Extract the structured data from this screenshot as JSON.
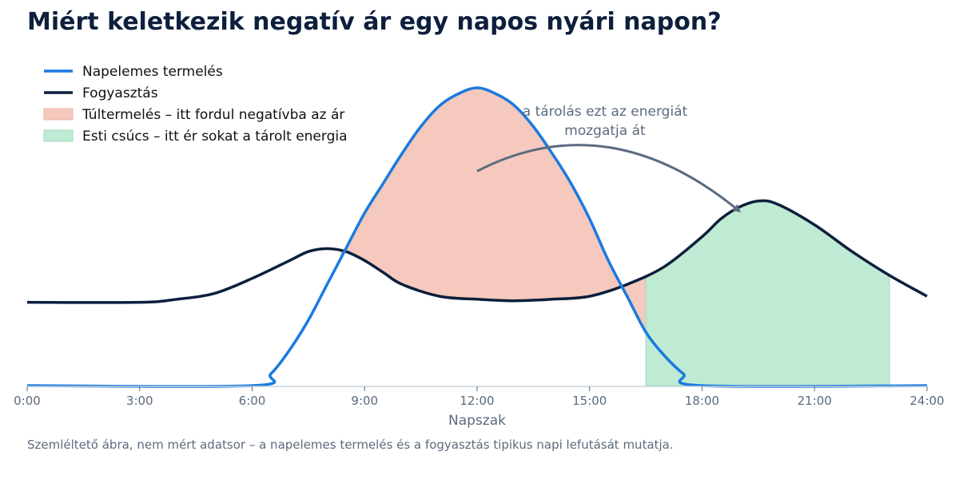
{
  "chart_data": {
    "type": "area",
    "title": "Miért keletkezik negatív ár egy napos nyári napon?",
    "xlabel": "Napszak",
    "ylabel": "",
    "xlim": [
      0,
      24
    ],
    "ylim": [
      0,
      1
    ],
    "x_ticks": [
      {
        "x": 0,
        "label": "0:00"
      },
      {
        "x": 3,
        "label": "3:00"
      },
      {
        "x": 6,
        "label": "6:00"
      },
      {
        "x": 9,
        "label": "9:00"
      },
      {
        "x": 12,
        "label": "12:00"
      },
      {
        "x": 15,
        "label": "15:00"
      },
      {
        "x": 18,
        "label": "18:00"
      },
      {
        "x": 21,
        "label": "21:00"
      },
      {
        "x": 24,
        "label": "24:00"
      }
    ],
    "grid": false,
    "legend_position": "top-left",
    "series": [
      {
        "name": "Napelemes termelés",
        "color": "#1a7ae0",
        "kind": "line",
        "x": [
          0,
          6,
          6.5,
          7,
          7.5,
          8,
          8.5,
          9,
          9.5,
          10,
          10.5,
          11,
          11.5,
          12,
          12.5,
          13,
          13.5,
          14,
          14.5,
          15,
          15.5,
          16,
          16.5,
          17,
          17.5,
          18,
          24
        ],
        "y": [
          0,
          0,
          0.04,
          0.12,
          0.22,
          0.34,
          0.46,
          0.58,
          0.68,
          0.78,
          0.87,
          0.94,
          0.98,
          1.0,
          0.98,
          0.94,
          0.87,
          0.78,
          0.68,
          0.56,
          0.42,
          0.3,
          0.18,
          0.1,
          0.04,
          0,
          0
        ]
      },
      {
        "name": "Fogyasztás",
        "color": "#0d1f3c",
        "kind": "line",
        "x": [
          0,
          3,
          4,
          5,
          6,
          7,
          7.5,
          8,
          8.5,
          9,
          9.5,
          10,
          11,
          12,
          13,
          14,
          15,
          16,
          17,
          18,
          18.5,
          19,
          19.5,
          20,
          21,
          22,
          23,
          24
        ],
        "y": [
          0.28,
          0.28,
          0.29,
          0.31,
          0.36,
          0.42,
          0.45,
          0.46,
          0.45,
          0.42,
          0.38,
          0.34,
          0.3,
          0.29,
          0.285,
          0.29,
          0.3,
          0.34,
          0.4,
          0.5,
          0.56,
          0.6,
          0.62,
          0.61,
          0.54,
          0.45,
          0.37,
          0.3
        ]
      },
      {
        "name": "Túltermelés – itt fordul negatívba az ár",
        "color": "#f5c9bd",
        "kind": "fill_between",
        "x_range": [
          8.35,
          16.5
        ]
      },
      {
        "name": "Esti csúcs – itt ér sokat a tárolt energia",
        "color": "#bfead3",
        "kind": "fill_to_axis",
        "x_range": [
          16.5,
          23
        ]
      }
    ],
    "annotations": [
      {
        "text_lines": [
          "a tárolás ezt az energiát",
          "mozgatja át"
        ],
        "from": [
          12,
          0.72
        ],
        "to": [
          19.3,
          0.58
        ]
      }
    ],
    "note": "Szemléltető ábra, nem mért adatsor – a napelemes termelés és a fogyasztás tipikus napi lefutását mutatja."
  }
}
